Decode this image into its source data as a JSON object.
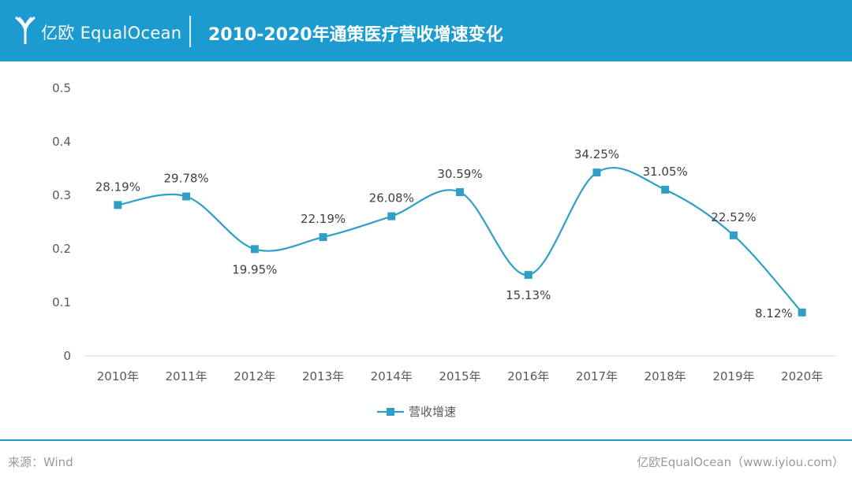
{
  "header": {
    "logo_text": "亿欧 EqualOcean",
    "title": "2010-2020年通策医疗营收增速变化"
  },
  "colors": {
    "brand": "#1b9bd0",
    "series": "#2f9fc6"
  },
  "chart_data": {
    "type": "line",
    "title": "",
    "xlabel": "",
    "ylabel": "",
    "categories": [
      "2010年",
      "2011年",
      "2012年",
      "2013年",
      "2014年",
      "2015年",
      "2016年",
      "2017年",
      "2018年",
      "2019年",
      "2020年"
    ],
    "series": [
      {
        "name": "营收增速",
        "values": [
          0.2819,
          0.2978,
          0.1995,
          0.2219,
          0.2608,
          0.3059,
          0.1513,
          0.3425,
          0.3105,
          0.2252,
          0.0812
        ],
        "labels": [
          "28.19%",
          "29.78%",
          "19.95%",
          "22.19%",
          "26.08%",
          "30.59%",
          "15.13%",
          "34.25%",
          "31.05%",
          "22.52%",
          "8.12%"
        ]
      }
    ],
    "ylim": [
      0,
      0.5
    ],
    "yticks": [
      "0",
      "0.1",
      "0.2",
      "0.3",
      "0.4",
      "0.5"
    ],
    "grid": false,
    "legend_position": "bottom",
    "smooth": true
  },
  "footer": {
    "source": "来源：Wind",
    "credit": "亿欧EqualOcean（www.iyiou.com）"
  }
}
